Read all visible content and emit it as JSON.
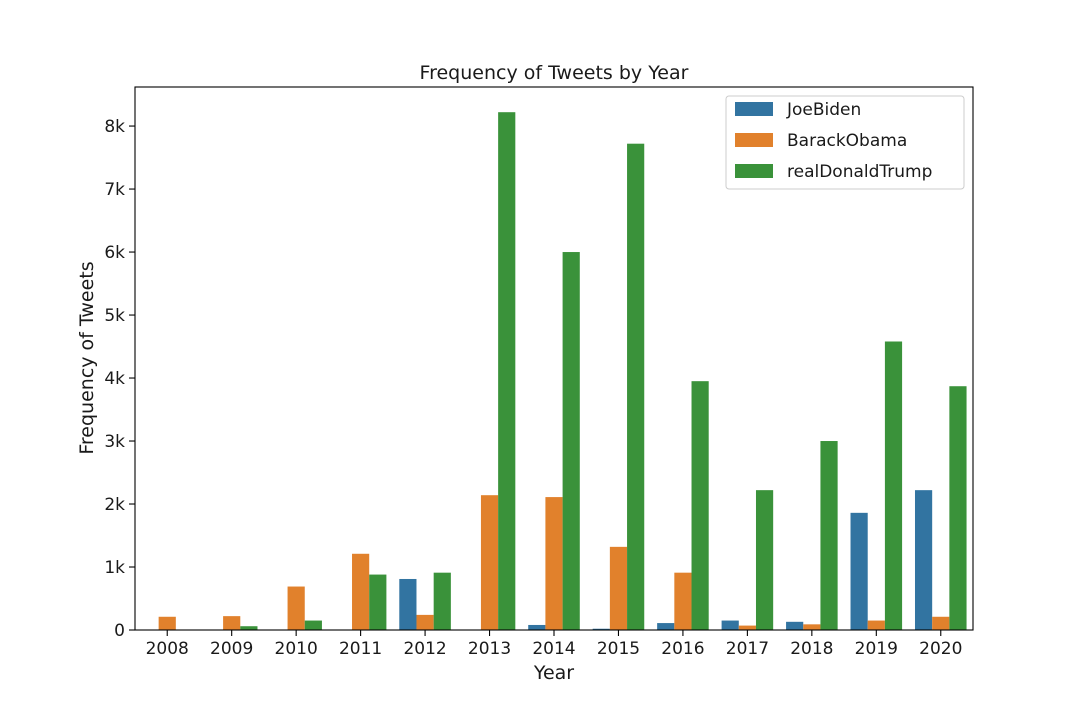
{
  "chart_data": {
    "type": "bar",
    "title": "Frequency of Tweets by Year",
    "xlabel": "Year",
    "ylabel": "Frequency of Tweets",
    "categories": [
      "2008",
      "2009",
      "2010",
      "2011",
      "2012",
      "2013",
      "2014",
      "2015",
      "2016",
      "2017",
      "2018",
      "2019",
      "2020"
    ],
    "series": [
      {
        "name": "JoeBiden",
        "color": "#3274a1",
        "values": [
          0,
          0,
          0,
          0,
          810,
          0,
          80,
          20,
          110,
          150,
          130,
          1860,
          2220
        ]
      },
      {
        "name": "BarackObama",
        "color": "#e1812c",
        "values": [
          210,
          220,
          690,
          1210,
          240,
          2140,
          2110,
          1320,
          910,
          70,
          90,
          150,
          210
        ]
      },
      {
        "name": "realDonaldTrump",
        "color": "#3a923a",
        "values": [
          0,
          60,
          150,
          880,
          910,
          8220,
          6000,
          7720,
          3950,
          2220,
          3000,
          4580,
          3870
        ]
      }
    ],
    "ylim": [
      0,
      8620
    ],
    "yticks": [
      0,
      1000,
      2000,
      3000,
      4000,
      5000,
      6000,
      7000,
      8000
    ],
    "ytick_labels": [
      "0",
      "1k",
      "2k",
      "3k",
      "4k",
      "5k",
      "6k",
      "7k",
      "8k"
    ],
    "grid": false,
    "legend_position": "top-right"
  }
}
